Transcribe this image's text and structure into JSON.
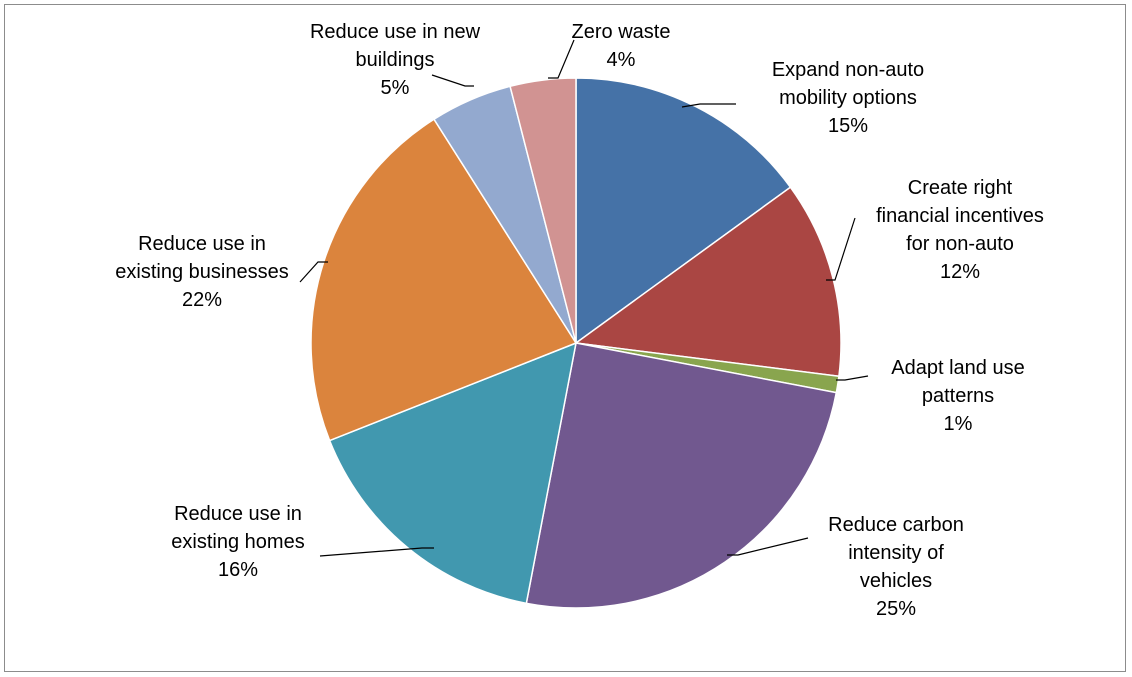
{
  "chart_data": {
    "type": "pie",
    "title": "",
    "start_angle_deg": 0,
    "direction": "clockwise",
    "slices": [
      {
        "label_lines": [
          "Expand non-auto",
          "mobility options"
        ],
        "percent": "15%",
        "value": 15,
        "color": "#4572A7"
      },
      {
        "label_lines": [
          "Create right",
          "financial incentives",
          "for non-auto"
        ],
        "percent": "12%",
        "value": 12,
        "color": "#AA4643"
      },
      {
        "label_lines": [
          "Adapt land use",
          "patterns"
        ],
        "percent": "1%",
        "value": 1,
        "color": "#89A54E"
      },
      {
        "label_lines": [
          "Reduce carbon",
          "intensity of",
          "vehicles"
        ],
        "percent": "25%",
        "value": 25,
        "color": "#71588F"
      },
      {
        "label_lines": [
          "Reduce use in",
          "existing homes"
        ],
        "percent": "16%",
        "value": 16,
        "color": "#4198AF"
      },
      {
        "label_lines": [
          "Reduce use in",
          "existing businesses"
        ],
        "percent": "22%",
        "value": 22,
        "color": "#DB843D"
      },
      {
        "label_lines": [
          "Reduce use in new",
          "buildings"
        ],
        "percent": "5%",
        "value": 5,
        "color": "#93A9CF"
      },
      {
        "label_lines": [
          "Zero waste"
        ],
        "percent": "4%",
        "value": 4,
        "color": "#D19392"
      }
    ]
  }
}
